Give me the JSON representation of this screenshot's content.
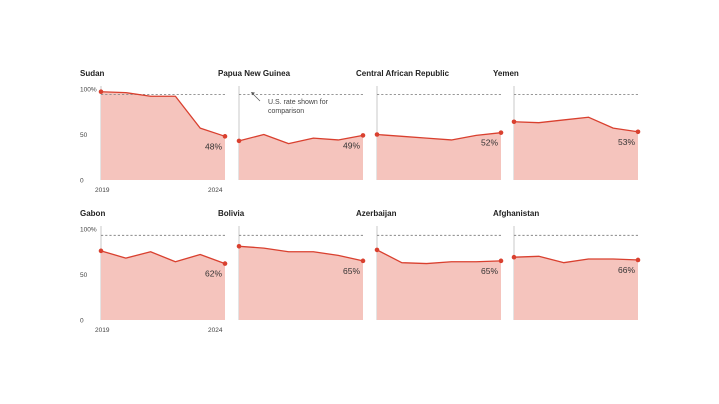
{
  "colors": {
    "area": "#f5c4bd",
    "line": "#d9402f",
    "reference": "#8a8a8a",
    "axis": "#bbbbbb"
  },
  "chart_data": [
    {
      "type": "area",
      "title": "Sudan",
      "x": [
        2019,
        2020,
        2021,
        2022,
        2023,
        2024
      ],
      "values": [
        97,
        96,
        92,
        92,
        57,
        48
      ],
      "end_label": "48%",
      "reference": [
        94,
        94,
        94,
        94,
        94,
        94
      ],
      "ylim": [
        0,
        100
      ],
      "y_ticks": [
        "0",
        "50",
        "100%"
      ],
      "x_ticks": [
        "2019",
        "2024"
      ]
    },
    {
      "type": "area",
      "title": "Papua New Guinea",
      "x": [
        2019,
        2020,
        2021,
        2022,
        2023,
        2024
      ],
      "values": [
        43,
        50,
        40,
        46,
        44,
        49
      ],
      "end_label": "49%",
      "reference": [
        94,
        94,
        94,
        94,
        94,
        94
      ],
      "ylim": [
        0,
        100
      ],
      "annotation": [
        "U.S. rate shown for",
        "comparison"
      ]
    },
    {
      "type": "area",
      "title": "Central African Republic",
      "x": [
        2019,
        2020,
        2021,
        2022,
        2023,
        2024
      ],
      "values": [
        50,
        48,
        46,
        44,
        49,
        52
      ],
      "end_label": "52%",
      "reference": [
        94,
        94,
        94,
        94,
        94,
        94
      ],
      "ylim": [
        0,
        100
      ]
    },
    {
      "type": "area",
      "title": "Yemen",
      "x": [
        2019,
        2020,
        2021,
        2022,
        2023,
        2024
      ],
      "values": [
        64,
        63,
        66,
        69,
        57,
        53
      ],
      "end_label": "53%",
      "reference": [
        94,
        94,
        94,
        94,
        94,
        94
      ],
      "ylim": [
        0,
        100
      ]
    },
    {
      "type": "area",
      "title": "Gabon",
      "x": [
        2019,
        2020,
        2021,
        2022,
        2023,
        2024
      ],
      "values": [
        76,
        68,
        75,
        64,
        72,
        62
      ],
      "end_label": "62%",
      "reference": [
        93,
        93,
        93,
        93,
        93,
        93
      ],
      "ylim": [
        0,
        100
      ],
      "y_ticks": [
        "0",
        "50",
        "100%"
      ],
      "x_ticks": [
        "2019",
        "2024"
      ]
    },
    {
      "type": "area",
      "title": "Bolivia",
      "x": [
        2019,
        2020,
        2021,
        2022,
        2023,
        2024
      ],
      "values": [
        81,
        79,
        75,
        75,
        71,
        65
      ],
      "end_label": "65%",
      "reference": [
        93,
        93,
        93,
        93,
        93,
        93
      ],
      "ylim": [
        0,
        100
      ]
    },
    {
      "type": "area",
      "title": "Azerbaijan",
      "x": [
        2019,
        2020,
        2021,
        2022,
        2023,
        2024
      ],
      "values": [
        77,
        63,
        62,
        64,
        64,
        65
      ],
      "end_label": "65%",
      "reference": [
        93,
        93,
        93,
        93,
        93,
        93
      ],
      "ylim": [
        0,
        100
      ]
    },
    {
      "type": "area",
      "title": "Afghanistan",
      "x": [
        2019,
        2020,
        2021,
        2022,
        2023,
        2024
      ],
      "values": [
        69,
        70,
        63,
        67,
        67,
        66
      ],
      "end_label": "66%",
      "reference": [
        93,
        93,
        93,
        93,
        93,
        93
      ],
      "ylim": [
        0,
        100
      ]
    }
  ]
}
